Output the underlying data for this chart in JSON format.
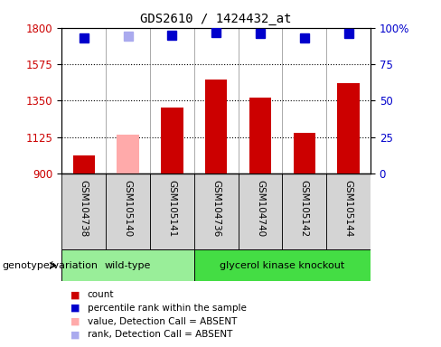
{
  "title": "GDS2610 / 1424432_at",
  "samples": [
    "GSM104738",
    "GSM105140",
    "GSM105141",
    "GSM104736",
    "GSM104740",
    "GSM105142",
    "GSM105144"
  ],
  "bar_values": [
    1010,
    1140,
    1310,
    1480,
    1370,
    1150,
    1460
  ],
  "bar_colors": [
    "#cc0000",
    "#ffaaaa",
    "#cc0000",
    "#cc0000",
    "#cc0000",
    "#cc0000",
    "#cc0000"
  ],
  "rank_values": [
    93,
    94,
    95,
    97,
    96,
    93,
    96
  ],
  "rank_colors": [
    "#0000cc",
    "#aaaaee",
    "#0000cc",
    "#0000cc",
    "#0000cc",
    "#0000cc",
    "#0000cc"
  ],
  "ylim_left": [
    900,
    1800
  ],
  "ylim_right": [
    0,
    100
  ],
  "yticks_left": [
    900,
    1125,
    1350,
    1575,
    1800
  ],
  "yticks_right": [
    0,
    25,
    50,
    75,
    100
  ],
  "hlines": [
    1125,
    1350,
    1575
  ],
  "groups": [
    {
      "label": "wild-type",
      "span": [
        0,
        2
      ],
      "color": "#99ee99"
    },
    {
      "label": "glycerol kinase knockout",
      "span": [
        3,
        6
      ],
      "color": "#44dd44"
    }
  ],
  "group_row_label": "genotype/variation",
  "legend_items": [
    {
      "label": "count",
      "color": "#cc0000"
    },
    {
      "label": "percentile rank within the sample",
      "color": "#0000cc"
    },
    {
      "label": "value, Detection Call = ABSENT",
      "color": "#ffaaaa"
    },
    {
      "label": "rank, Detection Call = ABSENT",
      "color": "#aaaaee"
    }
  ],
  "bar_width": 0.5,
  "rank_marker_size": 7,
  "label_area_color": "#d0d0d0",
  "plot_bg": "white"
}
